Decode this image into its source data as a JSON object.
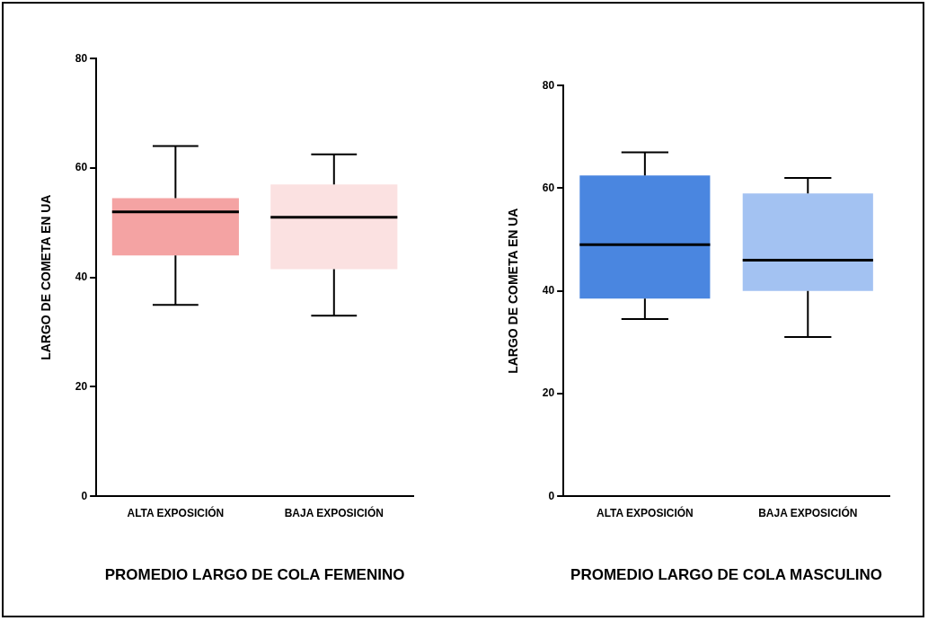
{
  "chart_data": [
    {
      "type": "box",
      "categories": [
        "ALTA EXPOSICIÓN",
        "BAJA EXPOSICIÓN"
      ],
      "xlabel": "PROMEDIO LARGO DE COLA FEMENINO",
      "ylabel": "LARGO DE COMETA EN UA",
      "ylim": [
        0,
        80
      ],
      "yticks": [
        0,
        20,
        40,
        60,
        80
      ],
      "grid": false,
      "legend": false,
      "colors": [
        "#f4a3a3",
        "#fbe1e1"
      ],
      "boxes": [
        {
          "low": 35,
          "q1": 44,
          "median": 52,
          "q3": 54.5,
          "high": 64
        },
        {
          "low": 33,
          "q1": 41.5,
          "median": 51,
          "q3": 57,
          "high": 62.5
        }
      ]
    },
    {
      "type": "box",
      "categories": [
        "ALTA EXPOSICIÓN",
        "BAJA EXPOSICIÓN"
      ],
      "xlabel": "PROMEDIO LARGO DE COLA MASCULINO",
      "ylabel": "LARGO DE COMETA EN UA",
      "ylim": [
        0,
        80
      ],
      "yticks": [
        0,
        20,
        40,
        60,
        80
      ],
      "grid": false,
      "legend": false,
      "colors": [
        "#4a86e0",
        "#a3c2f2"
      ],
      "boxes": [
        {
          "low": 34.5,
          "q1": 38.5,
          "median": 49,
          "q3": 62.5,
          "high": 67
        },
        {
          "low": 31,
          "q1": 40,
          "median": 46,
          "q3": 59,
          "high": 62
        }
      ]
    }
  ]
}
